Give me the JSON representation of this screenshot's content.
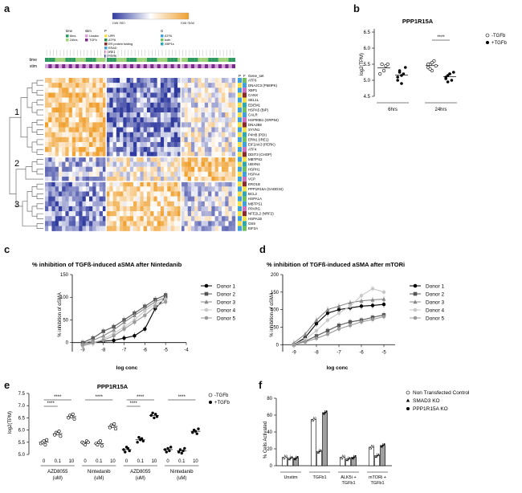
{
  "panels": {
    "a": {
      "label": "a",
      "row_labels": [
        "time",
        "stim"
      ],
      "scale_labels": [
        "row min",
        "row max"
      ],
      "legend": {
        "time_title": "time",
        "time_items": [
          "6hrs",
          "24hrs"
        ],
        "stim_title": "stim",
        "stim_items": [
          "Unstim",
          "TGFb"
        ],
        "path_title": "P",
        "path_items": [
          "UPR",
          "ATF6",
          "ER protein folding",
          "ERAD",
          "IRE1",
          "PERK"
        ],
        "gene_title": "G",
        "gene_items": [
          "ATF6",
          "both",
          "XBP1s"
        ]
      },
      "gene_set_header": [
        "P",
        "F",
        "Gene_set"
      ],
      "cluster_labels": [
        "1",
        "2",
        "3"
      ],
      "genes": [
        "ATF6",
        "DNAJC3 (P58IPK)",
        "XBP1",
        "CANX",
        "SEL1L",
        "EDEM1",
        "HSPA5 (BiP)",
        "CALR",
        "HSP90B1 (GRP94)",
        "DNAJB9",
        "SYVN1",
        "P4HB (PDI)",
        "ERN1 (IRE1)",
        "EIF2AK3 (PERK)",
        "ATF4",
        "DDIT3 (CHOP)",
        "MBTPS2",
        "UBXN4",
        "HSPH1",
        "HSPA4",
        "VCP",
        "ERO1B",
        "PPP1R15A (GADD34)",
        "BCL2",
        "HSPA1A",
        "MBTPS1",
        "PPARG",
        "NFE2L2 (NRF2)",
        "HSPA1B",
        "OS9",
        "EIF2A"
      ]
    },
    "b": {
      "label": "b",
      "title": "PPP1R15A",
      "ylabel": "log2(TPM)",
      "yticks": [
        "4.5",
        "5.0",
        "5.5",
        "6.0",
        "6.5"
      ],
      "groups": [
        "6hrs",
        "24hrs"
      ],
      "significance": "****",
      "legend": [
        "-TGFb",
        "+TGFb"
      ]
    },
    "c": {
      "label": "c",
      "title": "% inhibition of TGFß-induced aSMA after Nintedanib",
      "ylabel": "% inhibition of αSMA",
      "xlabel": "log conc",
      "xticks": [
        "-9",
        "-8",
        "-7",
        "-6",
        "-5",
        "-4"
      ],
      "yticks": [
        "0",
        "50",
        "100",
        "150"
      ],
      "legend": [
        "Donor 1",
        "Donor 2",
        "Donor 3",
        "Donor 4",
        "Donor 5"
      ]
    },
    "d": {
      "label": "d",
      "title": "% inhibition of TGFß-induced aSMA after mTORi",
      "ylabel": "% inhibition of αSMA",
      "xlabel": "log conc",
      "xticks": [
        "-9",
        "-8",
        "-7",
        "-6",
        "-5"
      ],
      "yticks": [
        "0",
        "50",
        "100",
        "150",
        "200"
      ],
      "legend": [
        "Donor 1",
        "Donor 2",
        "Donor 3",
        "Donor 4",
        "Donor 5"
      ]
    },
    "e": {
      "label": "e",
      "title": "PPP1R15A",
      "ylabel": "log2(TPM)",
      "yticks": [
        "5.0",
        "5.5",
        "6.0",
        "6.5",
        "7.0",
        "7.5"
      ],
      "dose_labels": [
        "0",
        "0.1",
        "10",
        "0",
        "0.1",
        "10",
        "0",
        "0.1",
        "10",
        "0",
        "0.1",
        "10"
      ],
      "group_labels": [
        "AZD8055\n(uM)",
        "Nintedanib\n(uM)",
        "AZD8055\n(uM)",
        "Nintedanib\n(uM)"
      ],
      "significance": "****",
      "legend": [
        "-TGFb",
        "+TGFb"
      ]
    },
    "f": {
      "label": "f",
      "ylabel": "% Cells Activated",
      "yticks": [
        "0",
        "20",
        "40",
        "60",
        "80"
      ],
      "groups": [
        "Unstim",
        "TGFb1",
        "ALK5i +\nTGFb1",
        "mTORi +\nTGFb1"
      ],
      "legend": [
        "Non Transfected Control",
        "SMAD3 KO",
        "PPP1R15A KO"
      ]
    }
  },
  "chart_data": [
    {
      "type": "scatter",
      "panel": "b",
      "title": "PPP1R15A",
      "ylabel": "log2(TPM)",
      "ylim": [
        4.5,
        6.5
      ],
      "categories": [
        "6hrs",
        "24hrs"
      ],
      "series": [
        {
          "name": "-TGFb",
          "values": [
            [
              5.2,
              5.5,
              5.3,
              5.45,
              5.5
            ],
            [
              5.4,
              5.5,
              5.3,
              5.6,
              5.45,
              5.5,
              5.35,
              5.55
            ]
          ]
        },
        {
          "name": "+TGFb",
          "values": [
            [
              5.1,
              5.3,
              4.9,
              5.2,
              5.4,
              5.0,
              5.25,
              5.15
            ],
            [
              5.1,
              4.95,
              5.2,
              5.0,
              5.25,
              5.05,
              5.15,
              5.2
            ]
          ]
        }
      ]
    },
    {
      "type": "line",
      "panel": "c",
      "title": "% inhibition of TGFß-induced aSMA after Nintedanib",
      "xlabel": "log conc",
      "ylabel": "% inhibition of αSMA",
      "xlim": [
        -9.5,
        -4
      ],
      "ylim": [
        -20,
        150
      ],
      "x": [
        -9,
        -8.5,
        -8,
        -7.5,
        -7,
        -6.5,
        -6,
        -5.5,
        -5
      ],
      "series": [
        {
          "name": "Donor 1",
          "values": [
            -5,
            0,
            3,
            5,
            10,
            15,
            30,
            75,
            100
          ]
        },
        {
          "name": "Donor 2",
          "values": [
            0,
            10,
            25,
            35,
            50,
            65,
            80,
            95,
            105
          ]
        },
        {
          "name": "Donor 3",
          "values": [
            -3,
            5,
            15,
            28,
            45,
            60,
            75,
            90,
            100
          ]
        },
        {
          "name": "Donor 4",
          "values": [
            -8,
            -2,
            8,
            20,
            35,
            50,
            70,
            85,
            95
          ]
        },
        {
          "name": "Donor 5",
          "values": [
            -5,
            0,
            5,
            15,
            30,
            45,
            60,
            80,
            90
          ]
        }
      ]
    },
    {
      "type": "line",
      "panel": "d",
      "title": "% inhibition of TGFß-induced aSMA after mTORi",
      "xlabel": "log conc",
      "ylabel": "% inhibition of αSMA",
      "xlim": [
        -9.5,
        -4.5
      ],
      "ylim": [
        -20,
        200
      ],
      "x": [
        -9,
        -8.5,
        -8,
        -7.5,
        -7,
        -6.5,
        -6,
        -5.5,
        -5
      ],
      "series": [
        {
          "name": "Donor 1",
          "values": [
            0,
            20,
            60,
            90,
            100,
            105,
            110,
            112,
            115
          ]
        },
        {
          "name": "Donor 2",
          "values": [
            0,
            10,
            25,
            40,
            55,
            65,
            70,
            78,
            85
          ]
        },
        {
          "name": "Donor 3",
          "values": [
            5,
            30,
            70,
            100,
            110,
            120,
            125,
            128,
            130
          ]
        },
        {
          "name": "Donor 4",
          "values": [
            0,
            15,
            40,
            70,
            90,
            110,
            140,
            160,
            150
          ]
        },
        {
          "name": "Donor 5",
          "values": [
            0,
            8,
            18,
            30,
            45,
            55,
            65,
            72,
            80
          ]
        }
      ]
    },
    {
      "type": "scatter",
      "panel": "e",
      "title": "PPP1R15A",
      "ylabel": "log2(TPM)",
      "ylim": [
        5.0,
        7.5
      ],
      "categories": [
        "0",
        "0.1",
        "10",
        "0",
        "0.1",
        "10",
        "0",
        "0.1",
        "10",
        "0",
        "0.1",
        "10"
      ],
      "series": [
        {
          "name": "-TGFb",
          "values": [
            [
              5.45,
              5.5,
              5.55,
              5.4,
              5.6
            ],
            [
              5.8,
              5.9,
              5.85,
              5.95,
              5.75
            ],
            [
              6.5,
              6.6,
              6.55,
              6.65,
              6.45
            ],
            [
              5.5,
              5.45,
              5.4,
              5.55,
              5.5
            ],
            [
              5.45,
              5.4,
              5.5,
              5.55,
              5.35
            ],
            [
              6.1,
              6.2,
              6.15,
              6.25,
              6.05
            ]
          ]
        },
        {
          "name": "+TGFb",
          "values": [
            [
              5.2,
              5.1,
              5.3,
              5.25,
              5.15
            ],
            [
              5.5,
              5.7,
              5.6,
              5.65,
              5.55
            ],
            [
              6.6,
              6.7,
              6.5,
              6.65,
              6.55
            ],
            [
              5.2,
              5.1,
              5.25,
              5.15,
              5.3
            ],
            [
              5.1,
              5.2,
              5.05,
              5.15,
              5.25
            ],
            [
              5.9,
              6.0,
              5.95,
              5.85,
              6.05
            ]
          ]
        }
      ]
    },
    {
      "type": "bar",
      "panel": "f",
      "ylabel": "% Cells Activated",
      "ylim": [
        0,
        80
      ],
      "categories": [
        "Unstim",
        "TGFb1",
        "ALK5i + TGFb1",
        "mTORi + TGFb1"
      ],
      "series": [
        {
          "name": "Non Transfected Control",
          "values": [
            10,
            55,
            10,
            22
          ]
        },
        {
          "name": "SMAD3 KO",
          "values": [
            9,
            17,
            8,
            12
          ]
        },
        {
          "name": "PPP1R15A KO",
          "values": [
            9,
            63,
            10,
            24
          ]
        }
      ]
    }
  ]
}
